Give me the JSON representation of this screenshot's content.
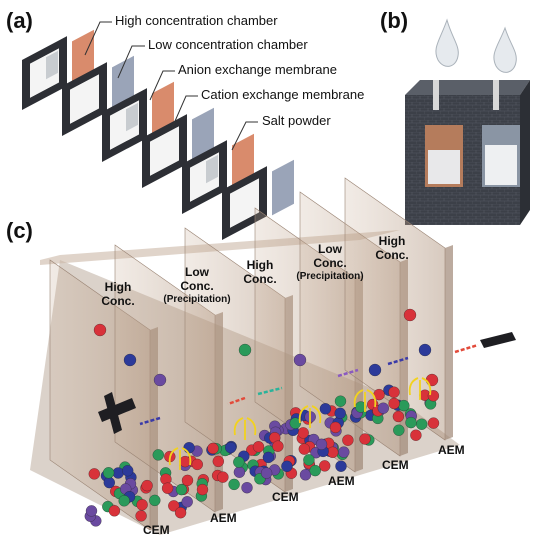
{
  "panels": {
    "a": {
      "label": "(a)",
      "callouts": [
        "High concentration chamber",
        "Low concentration chamber",
        "Anion exchange membrane",
        "Cation exchange membrane",
        "Salt powder"
      ]
    },
    "b": {
      "label": "(b)"
    },
    "c": {
      "label": "(c)",
      "chambers": [
        {
          "title": "High Conc."
        },
        {
          "title": "Low Conc.",
          "note": "(Precipitation)"
        },
        {
          "title": "High Conc."
        },
        {
          "title": "Low Conc.",
          "note": "(Precipitation)"
        },
        {
          "title": "High Conc."
        }
      ],
      "membranes": [
        "CEM",
        "AEM",
        "CEM",
        "AEM",
        "CEM",
        "AEM"
      ]
    }
  }
}
